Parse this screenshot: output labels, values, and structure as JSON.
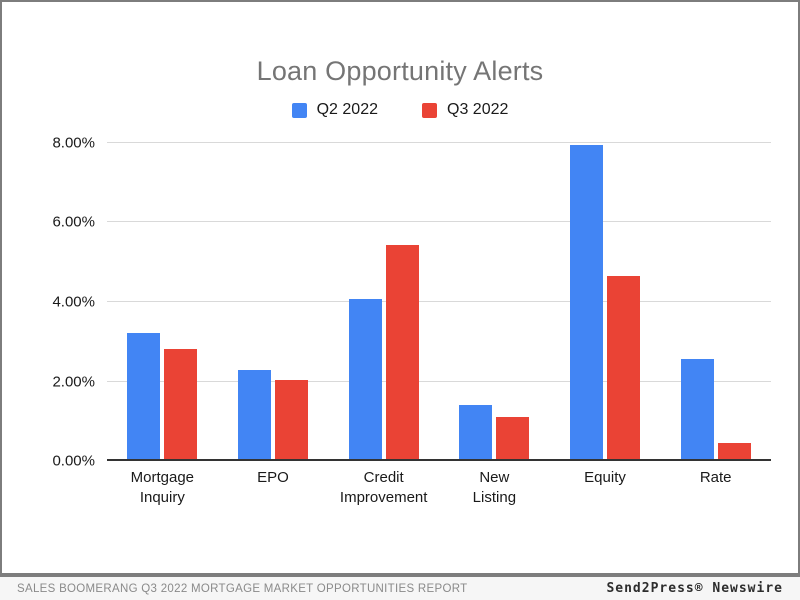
{
  "title": "Loan Opportunity Alerts",
  "legend": [
    {
      "label": "Q2 2022",
      "color": "#4285F4"
    },
    {
      "label": "Q3 2022",
      "color": "#EA4335"
    }
  ],
  "chart_data": {
    "type": "bar",
    "title": "Loan Opportunity Alerts",
    "categories": [
      "Mortgage Inquiry",
      "EPO",
      "Credit Improvement",
      "New Listing",
      "Equity",
      "Rate"
    ],
    "xtick_lines": [
      [
        "Mortgage",
        "Inquiry"
      ],
      [
        "EPO"
      ],
      [
        "Credit",
        "Improvement"
      ],
      [
        "New",
        "Listing"
      ],
      [
        "Equity"
      ],
      [
        "Rate"
      ]
    ],
    "series": [
      {
        "name": "Q2 2022",
        "color": "#4285F4",
        "values": [
          3.22,
          2.28,
          4.08,
          1.42,
          7.94,
          2.56
        ]
      },
      {
        "name": "Q3 2022",
        "color": "#EA4335",
        "values": [
          2.82,
          2.03,
          5.44,
          1.1,
          4.66,
          0.46
        ]
      }
    ],
    "ylim": [
      0,
      8.1
    ],
    "ytick_values": [
      0,
      2,
      4,
      6,
      8
    ],
    "yticks": [
      "0.00%",
      "2.00%",
      "4.00%",
      "6.00%",
      "8.00%"
    ],
    "value_format": "percent",
    "grid": true,
    "legend_position": "top",
    "title_color": "#757575",
    "axis_text_color": "#1a1a1a",
    "gridline_color": "#d9d9d9",
    "baseline_color": "#333333"
  },
  "footer": {
    "left": "SALES BOOMERANG Q3 2022 MORTGAGE MARKET OPPORTUNITIES REPORT",
    "right": "Send2Press® Newswire"
  }
}
